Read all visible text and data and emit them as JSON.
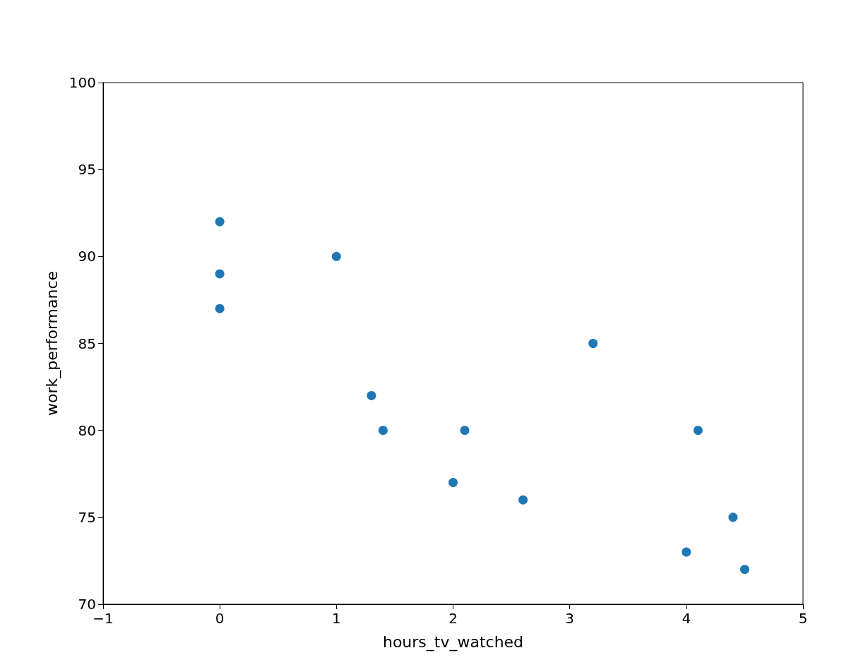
{
  "chart_data": {
    "type": "scatter",
    "xlabel": "hours_tv_watched",
    "ylabel": "work_performance",
    "x": [
      0,
      0,
      0,
      1,
      1.3,
      1.4,
      2.1,
      2.0,
      2.6,
      3.2,
      4.1,
      4.4,
      4.0,
      4.5
    ],
    "series": [
      {
        "color": "#1f77b4",
        "values": [
          92,
          89,
          87,
          90,
          82,
          80,
          80,
          77,
          76,
          85,
          80,
          75,
          73,
          72
        ]
      }
    ],
    "xlim": [
      -1,
      5
    ],
    "xticks": [
      {
        "value": -1,
        "label": "−1"
      },
      0,
      1,
      2,
      3,
      4,
      5
    ],
    "ylim": [
      70,
      100
    ],
    "yticks": [
      70,
      75,
      80,
      85,
      90,
      95,
      100
    ],
    "grid": false,
    "marker": "circle"
  }
}
